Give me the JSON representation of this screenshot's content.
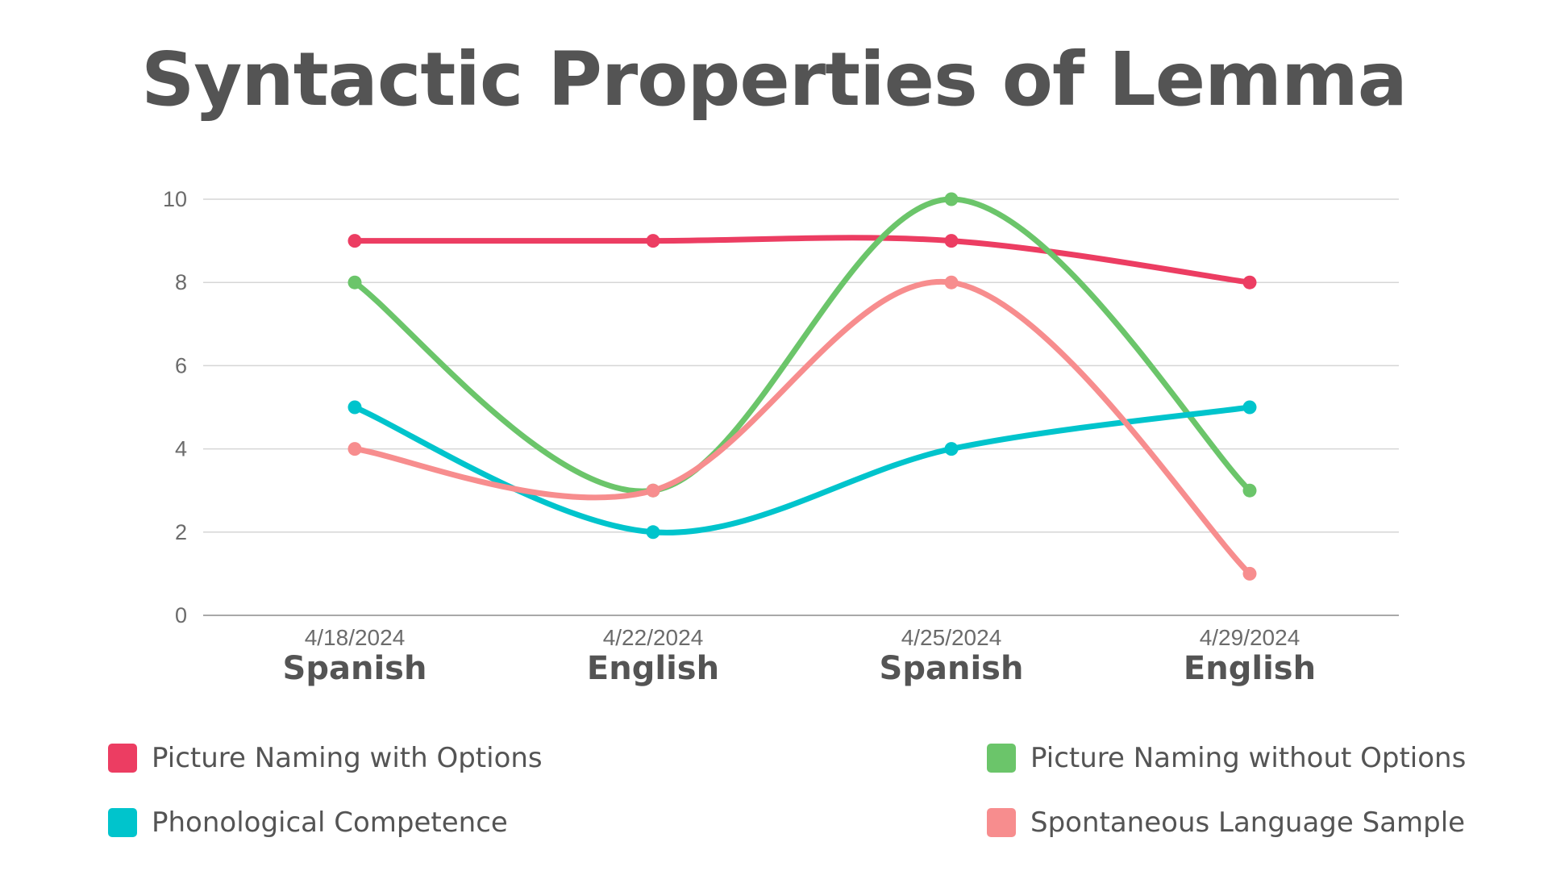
{
  "chart_data": {
    "type": "line",
    "title": "Syntactic Properties of Lemma",
    "categories": [
      "4/18/2024",
      "4/22/2024",
      "4/25/2024",
      "4/29/2024"
    ],
    "sublabels": [
      "Spanish",
      "English",
      "Spanish",
      "English"
    ],
    "ylim": [
      0,
      10
    ],
    "yticks": [
      "0",
      "2",
      "4",
      "6",
      "8",
      "10"
    ],
    "grid": true,
    "legend_position": "bottom",
    "smooth": true,
    "series": [
      {
        "name": "Picture Naming with Options",
        "color": "#ec3d62",
        "values": [
          9,
          9,
          9,
          8
        ]
      },
      {
        "name": "Picture Naming without Options",
        "color": "#6bc56a",
        "values": [
          8,
          3,
          10,
          3
        ]
      },
      {
        "name": "Phonological Competence",
        "color": "#00c4cc",
        "values": [
          5,
          2,
          4,
          5
        ]
      },
      {
        "name": "Spontaneous Language Sample",
        "color": "#f78d8e",
        "values": [
          4,
          3,
          8,
          1
        ]
      }
    ]
  }
}
